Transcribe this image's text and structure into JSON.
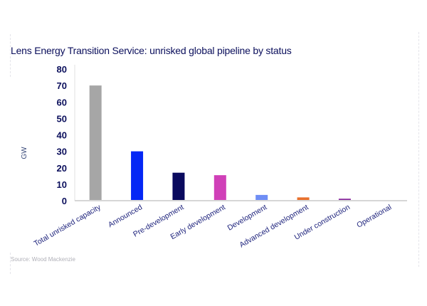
{
  "chart_data": {
    "type": "bar",
    "title": "Lens Energy Transition Service: unrisked global pipeline by status",
    "xlabel": "",
    "ylabel": "GW",
    "ylim": [
      0,
      80
    ],
    "yticks": [
      "0",
      "10",
      "20",
      "30",
      "40",
      "50",
      "60",
      "70",
      "80"
    ],
    "grid": false,
    "categories": [
      "Total unrisked capacity",
      "Announced",
      "Pre-development",
      "Early development",
      "Development",
      "Advanced development",
      "Under construction",
      "Operational"
    ],
    "values": [
      70,
      30,
      17,
      15.5,
      3.5,
      2,
      1.2,
      0.4
    ],
    "colors": [
      "#a6a6a6",
      "#0527f5",
      "#0a0a5e",
      "#d040b8",
      "#6f8ef5",
      "#e8702c",
      "#8a2a9e",
      "#5bc0de"
    ],
    "source": "Source: Wood Mackenzie"
  }
}
